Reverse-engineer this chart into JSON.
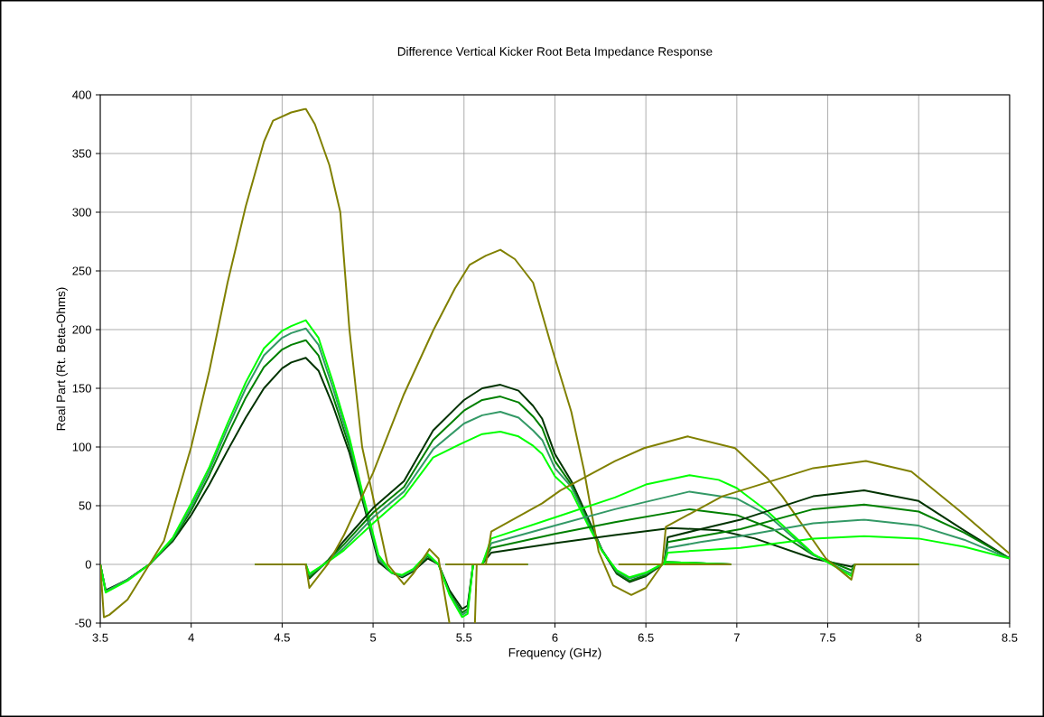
{
  "chart_data": {
    "type": "line",
    "title": "Difference Vertical Kicker Root Beta Impedance Response",
    "xlabel": "Frequency (GHz)",
    "ylabel": "Real Part (Rt. Beta-Ohms)",
    "xlim": [
      3.5,
      8.5
    ],
    "xticks": [
      3.5,
      4,
      4.5,
      5,
      5.5,
      6,
      6.5,
      7,
      7.5,
      8,
      8.5
    ],
    "ylim": [
      -50,
      400
    ],
    "yticks": [
      -50,
      0,
      50,
      100,
      150,
      200,
      250,
      300,
      350,
      400
    ],
    "grid": true,
    "marker": "none",
    "line_style": "solid",
    "series": [
      {
        "color": "#003300",
        "x": [
          3.5,
          3.53,
          3.65,
          3.77,
          3.9,
          4.0,
          4.1,
          4.2,
          4.3,
          4.4,
          4.5,
          4.55,
          4.63,
          4.7,
          4.78,
          4.87,
          4.95,
          5.03,
          5.1,
          5.16,
          5.22,
          5.3,
          5.36,
          5.42,
          5.49,
          5.52,
          5.55,
          5.85
        ],
        "values": [
          0,
          -22,
          -13,
          0,
          20,
          42,
          68,
          97,
          125,
          150,
          167,
          172,
          176,
          165,
          135,
          95,
          50,
          2,
          -7,
          -11,
          -6,
          5,
          0,
          -22,
          -38,
          -35,
          0,
          0
        ]
      },
      {
        "color": "#008000",
        "x": [
          3.5,
          3.53,
          3.65,
          3.77,
          3.9,
          4.0,
          4.1,
          4.2,
          4.3,
          4.4,
          4.5,
          4.55,
          4.63,
          4.7,
          4.78,
          4.87,
          4.95,
          5.03,
          5.1,
          5.16,
          5.22,
          5.3,
          5.36,
          5.42,
          5.49,
          5.52,
          5.55,
          5.85
        ],
        "values": [
          0,
          -23,
          -13,
          0,
          21,
          46,
          76,
          110,
          142,
          168,
          183,
          187,
          191,
          178,
          143,
          100,
          52,
          5,
          -7,
          -10,
          -5,
          7,
          0,
          -24,
          -41,
          -38,
          0,
          0
        ]
      },
      {
        "color": "#339966",
        "x": [
          3.5,
          3.53,
          3.65,
          3.77,
          3.9,
          4.0,
          4.1,
          4.2,
          4.3,
          4.4,
          4.5,
          4.55,
          4.63,
          4.7,
          4.78,
          4.87,
          4.95,
          5.03,
          5.1,
          5.16,
          5.22,
          5.3,
          5.36,
          5.42,
          5.49,
          5.52,
          5.55,
          5.85
        ],
        "values": [
          0,
          -23,
          -13,
          0,
          22,
          49,
          80,
          116,
          150,
          178,
          193,
          197,
          201,
          187,
          150,
          104,
          54,
          5,
          -7,
          -10,
          -5,
          8,
          0,
          -25,
          -43,
          -40,
          0,
          0
        ]
      },
      {
        "color": "#00ff00",
        "x": [
          3.5,
          3.53,
          3.65,
          3.77,
          3.9,
          4.0,
          4.1,
          4.2,
          4.3,
          4.4,
          4.5,
          4.55,
          4.63,
          4.7,
          4.78,
          4.87,
          4.95,
          5.03,
          5.1,
          5.16,
          5.22,
          5.3,
          5.36,
          5.42,
          5.49,
          5.52,
          5.55,
          5.85
        ],
        "values": [
          0,
          -24,
          -14,
          0,
          23,
          52,
          83,
          120,
          155,
          184,
          199,
          203,
          208,
          193,
          155,
          108,
          56,
          8,
          -7,
          -9,
          -4,
          9,
          0,
          -26,
          -45,
          -42,
          0,
          0
        ]
      },
      {
        "color": "#808000",
        "x": [
          3.5,
          3.52,
          3.55,
          3.65,
          3.77,
          3.85,
          4.0,
          4.1,
          4.2,
          4.3,
          4.4,
          4.45,
          4.55,
          4.63,
          4.68,
          4.76,
          4.82,
          4.87,
          4.94,
          5.01,
          5.08,
          5.17,
          5.22,
          5.31,
          5.36,
          5.42,
          5.5,
          5.56,
          5.57,
          5.85
        ],
        "values": [
          0,
          -45,
          -43,
          -30,
          0,
          20,
          100,
          165,
          240,
          305,
          360,
          378,
          385,
          388,
          375,
          340,
          300,
          200,
          100,
          50,
          0,
          -17,
          -8,
          13,
          5,
          -50,
          null,
          -50,
          0,
          0
        ]
      },
      {
        "color": "#003300",
        "x": [
          4.35,
          4.63,
          4.65,
          4.75,
          4.84,
          5.0,
          5.17,
          5.33,
          5.5,
          5.6,
          5.7,
          5.8,
          5.88,
          5.93,
          6.0,
          6.09,
          6.18,
          6.26,
          6.34,
          6.41,
          6.5,
          6.61,
          6.97
        ],
        "values": [
          0,
          0,
          -12,
          3,
          20,
          48,
          71,
          114,
          140,
          150,
          153,
          148,
          135,
          124,
          94,
          71,
          40,
          12,
          -8,
          -15,
          -10,
          2,
          0
        ]
      },
      {
        "color": "#008000",
        "x": [
          4.35,
          4.63,
          4.65,
          4.75,
          4.84,
          5.0,
          5.17,
          5.33,
          5.5,
          5.6,
          5.7,
          5.8,
          5.88,
          5.93,
          6.0,
          6.09,
          6.18,
          6.26,
          6.34,
          6.41,
          6.5,
          6.61,
          6.97
        ],
        "values": [
          0,
          0,
          -11,
          3,
          17,
          44,
          66,
          106,
          131,
          140,
          143,
          138,
          126,
          116,
          88,
          68,
          38,
          12,
          -7,
          -14,
          -9,
          2,
          0
        ]
      },
      {
        "color": "#339966",
        "x": [
          4.35,
          4.63,
          4.65,
          4.75,
          4.84,
          5.0,
          5.17,
          5.33,
          5.5,
          5.6,
          5.7,
          5.8,
          5.88,
          5.93,
          6.0,
          6.09,
          6.18,
          6.26,
          6.34,
          6.41,
          6.5,
          6.61,
          6.97
        ],
        "values": [
          0,
          0,
          -9,
          2,
          14,
          40,
          62,
          98,
          120,
          127,
          130,
          125,
          114,
          106,
          82,
          66,
          36,
          12,
          -6,
          -12,
          -8,
          2,
          0
        ]
      },
      {
        "color": "#00ff00",
        "x": [
          4.35,
          4.63,
          4.65,
          4.75,
          4.84,
          5.0,
          5.17,
          5.33,
          5.5,
          5.6,
          5.7,
          5.8,
          5.88,
          5.93,
          6.0,
          6.09,
          6.18,
          6.26,
          6.34,
          6.41,
          6.5,
          6.61,
          6.97
        ],
        "values": [
          0,
          0,
          -8,
          2,
          12,
          35,
          58,
          91,
          104,
          111,
          113,
          109,
          101,
          94,
          75,
          62,
          34,
          11,
          -5,
          -11,
          -7,
          2,
          0
        ]
      },
      {
        "color": "#808000",
        "x": [
          4.35,
          4.63,
          4.65,
          4.75,
          4.84,
          5.0,
          5.17,
          5.33,
          5.45,
          5.53,
          5.62,
          5.7,
          5.78,
          5.88,
          5.99,
          6.09,
          6.16,
          6.24,
          6.32,
          6.42,
          6.5,
          6.59,
          6.97
        ],
        "values": [
          0,
          0,
          -20,
          0,
          25,
          78,
          145,
          199,
          235,
          255,
          263,
          268,
          260,
          240,
          181,
          130,
          80,
          11,
          -18,
          -26,
          -20,
          0,
          0
        ]
      },
      {
        "color": "#003300",
        "x": [
          5.4,
          5.6,
          5.65,
          6.0,
          6.33,
          6.64,
          6.9,
          7.1,
          7.42,
          7.63,
          7.65,
          8.0
        ],
        "values": [
          0,
          0,
          10,
          18,
          25,
          31,
          29,
          22,
          5,
          -2,
          0,
          0
        ]
      },
      {
        "color": "#008000",
        "x": [
          5.4,
          5.6,
          5.65,
          6.0,
          6.33,
          6.74,
          7.0,
          7.2,
          7.42,
          7.63,
          7.65,
          8.0
        ],
        "values": [
          0,
          0,
          14,
          26,
          36,
          47,
          42,
          30,
          8,
          -5,
          0,
          0
        ]
      },
      {
        "color": "#339966",
        "x": [
          5.4,
          5.6,
          5.65,
          6.0,
          6.33,
          6.74,
          7.0,
          7.17,
          7.42,
          7.63,
          7.65,
          8.0
        ],
        "values": [
          0,
          0,
          18,
          33,
          47,
          62,
          56,
          42,
          8,
          -8,
          0,
          0
        ]
      },
      {
        "color": "#00ff00",
        "x": [
          5.4,
          5.6,
          5.65,
          6.0,
          6.33,
          6.5,
          6.74,
          6.9,
          7.0,
          7.17,
          7.42,
          7.63,
          7.65,
          8.0
        ],
        "values": [
          0,
          0,
          22,
          40,
          57,
          68,
          76,
          72,
          65,
          45,
          9,
          -10,
          0,
          0
        ]
      },
      {
        "color": "#808000",
        "x": [
          5.4,
          5.62,
          5.65,
          5.93,
          6.03,
          6.33,
          6.49,
          6.73,
          6.99,
          7.17,
          7.25,
          7.49,
          7.63,
          7.65,
          8.0
        ],
        "values": [
          0,
          0,
          28,
          52,
          63,
          88,
          99,
          109,
          99,
          73,
          58,
          5,
          -13,
          0,
          0
        ]
      },
      {
        "color": "#003300",
        "x": [
          6.35,
          6.6,
          6.62,
          6.8,
          7.02,
          7.42,
          7.7,
          8.0,
          8.25,
          8.5
        ],
        "values": [
          0,
          0,
          23,
          30,
          38,
          58,
          63,
          54,
          29,
          5
        ]
      },
      {
        "color": "#008000",
        "x": [
          6.35,
          6.6,
          6.62,
          6.8,
          7.02,
          7.42,
          7.7,
          8.0,
          8.25,
          8.5
        ],
        "values": [
          0,
          0,
          19,
          24,
          30,
          47,
          51,
          45,
          27,
          5
        ]
      },
      {
        "color": "#339966",
        "x": [
          6.35,
          6.6,
          6.62,
          6.8,
          7.02,
          7.42,
          7.7,
          8.0,
          8.25,
          8.5
        ],
        "values": [
          0,
          0,
          14,
          19,
          24,
          35,
          38,
          33,
          21,
          5
        ]
      },
      {
        "color": "#00ff00",
        "x": [
          6.35,
          6.6,
          6.62,
          6.8,
          7.02,
          7.42,
          7.7,
          8.0,
          8.25,
          8.5
        ],
        "values": [
          0,
          0,
          10,
          12,
          14,
          22,
          24,
          22,
          15,
          5
        ]
      },
      {
        "color": "#808000",
        "x": [
          6.35,
          6.59,
          6.61,
          6.92,
          7.42,
          7.71,
          7.96,
          8.23,
          8.5
        ],
        "values": [
          0,
          0,
          32,
          58,
          82,
          88,
          79,
          45,
          9
        ]
      }
    ]
  }
}
